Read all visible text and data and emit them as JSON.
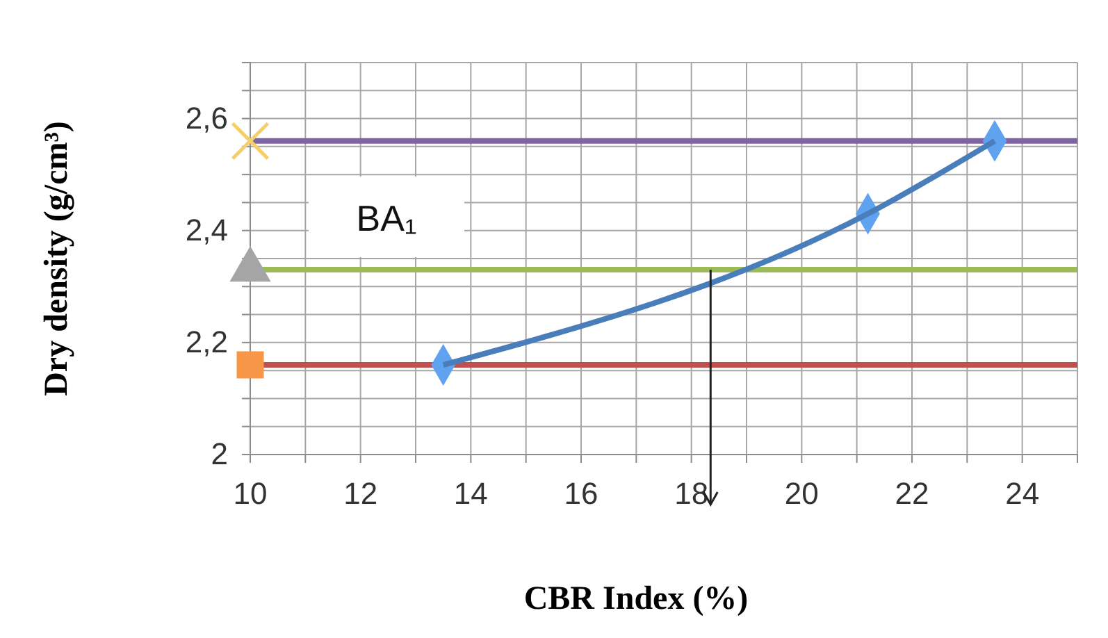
{
  "chart_data": {
    "type": "line",
    "xlabel": "CBR Index (%)",
    "ylabel": "Dry density (g/cm³)",
    "annotations": [
      "BA₁"
    ],
    "xlim": [
      10,
      25
    ],
    "xticks": [
      10,
      {
        "value": 11,
        "label": null
      },
      12,
      {
        "value": 13,
        "label": null
      },
      14,
      {
        "value": 15,
        "label": null
      },
      16,
      {
        "value": 17,
        "label": null
      },
      18,
      {
        "value": 19,
        "label": null
      },
      20,
      {
        "value": 21,
        "label": null
      },
      22,
      {
        "value": 23,
        "label": null
      },
      24,
      {
        "value": 25,
        "label": null
      }
    ],
    "ylim": [
      2,
      2.7
    ],
    "yticks": [
      2,
      {
        "value": 2.05,
        "label": null
      },
      {
        "value": 2.1,
        "label": null
      },
      {
        "value": 2.15,
        "label": null
      },
      {
        "value": 2.2,
        "label": "2,2"
      },
      {
        "value": 2.25,
        "label": null
      },
      {
        "value": 2.3,
        "label": null
      },
      {
        "value": 2.35,
        "label": null
      },
      {
        "value": 2.4,
        "label": "2,4"
      },
      {
        "value": 2.45,
        "label": null
      },
      {
        "value": 2.5,
        "label": null
      },
      {
        "value": 2.55,
        "label": null
      },
      {
        "value": 2.6,
        "label": "2,6"
      },
      {
        "value": 2.65,
        "label": null
      },
      {
        "value": 2.7,
        "label": null
      }
    ],
    "grid": true,
    "line_style": "solid",
    "ref_lines": [
      {
        "axis": "y",
        "value": 2.56,
        "color": "#8064a2"
      },
      {
        "axis": "y",
        "value": 2.33,
        "color": "#9bbb59"
      },
      {
        "axis": "y",
        "value": 2.16,
        "color": "#c0504d"
      }
    ],
    "series": [
      {
        "color": "#4a7ebb",
        "marker": "diamond",
        "x": [
          13.5,
          21.2,
          23.5
        ],
        "values": [
          2.16,
          2.43,
          2.56
        ]
      },
      {
        "type": "scatter",
        "color": "#f5cf6a",
        "marker": "cross",
        "x": [
          10
        ],
        "values": [
          2.56
        ]
      },
      {
        "type": "scatter",
        "color": "#a5a5a5",
        "marker": "triangle",
        "x": [
          10
        ],
        "values": [
          2.33
        ]
      },
      {
        "type": "scatter",
        "color": "#f79646",
        "marker": "square",
        "x": [
          10
        ],
        "values": [
          2.16
        ]
      }
    ]
  }
}
